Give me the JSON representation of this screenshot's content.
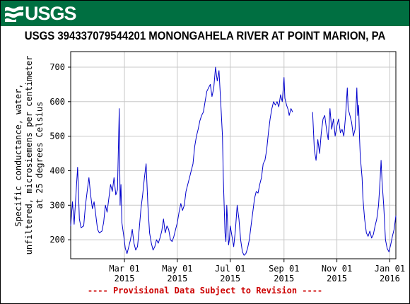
{
  "header": {
    "logo_text": "USGS",
    "banner_color": "#006f41"
  },
  "chart_data": {
    "type": "line",
    "title": "USGS 394337079544201 MONONGAHELA RIVER AT POINT MARION, PA",
    "ylabel_lines": [
      "Specific conductance, water,",
      "unfiltered, microsiemens per centimeter",
      "at 25 degrees Celsius"
    ],
    "xlabel": "",
    "xlim": [
      "2014-12-29",
      "2016-01-08"
    ],
    "ylim": [
      145,
      745
    ],
    "yticks": [
      200,
      300,
      400,
      500,
      600,
      700
    ],
    "xticks": [
      {
        "date": "2015-03-01",
        "month": "Mar 01",
        "year": "2015"
      },
      {
        "date": "2015-05-01",
        "month": "May 01",
        "year": "2015"
      },
      {
        "date": "2015-07-01",
        "month": "Jul 01",
        "year": "2015"
      },
      {
        "date": "2015-09-01",
        "month": "Sep 01",
        "year": "2015"
      },
      {
        "date": "2015-11-01",
        "month": "Nov 01",
        "year": "2015"
      },
      {
        "date": "2016-01-01",
        "month": "Jan 01",
        "year": "2016"
      }
    ],
    "grid": true,
    "line_color": "#0000cc",
    "series": [
      {
        "name": "",
        "segments": [
          [
            [
              "2014-12-29",
              240
            ],
            [
              "2014-12-31",
              310
            ],
            [
              "2015-01-02",
              245
            ],
            [
              "2015-01-04",
              330
            ],
            [
              "2015-01-06",
              410
            ],
            [
              "2015-01-08",
              260
            ],
            [
              "2015-01-10",
              235
            ],
            [
              "2015-01-13",
              240
            ],
            [
              "2015-01-15",
              300
            ],
            [
              "2015-01-17",
              340
            ],
            [
              "2015-01-19",
              380
            ],
            [
              "2015-01-21",
              330
            ],
            [
              "2015-01-23",
              290
            ],
            [
              "2015-01-25",
              310
            ],
            [
              "2015-01-27",
              270
            ],
            [
              "2015-01-29",
              230
            ],
            [
              "2015-01-31",
              220
            ],
            [
              "2015-02-03",
              225
            ],
            [
              "2015-02-05",
              250
            ],
            [
              "2015-02-07",
              300
            ],
            [
              "2015-02-09",
              280
            ],
            [
              "2015-02-11",
              320
            ],
            [
              "2015-02-13",
              360
            ],
            [
              "2015-02-15",
              340
            ],
            [
              "2015-02-17",
              380
            ],
            [
              "2015-02-19",
              330
            ],
            [
              "2015-02-21",
              345
            ],
            [
              "2015-02-23",
              580
            ],
            [
              "2015-02-24",
              300
            ],
            [
              "2015-02-25",
              360
            ],
            [
              "2015-02-26",
              250
            ],
            [
              "2015-02-28",
              215
            ],
            [
              "2015-03-02",
              175
            ],
            [
              "2015-03-04",
              160
            ],
            [
              "2015-03-06",
              180
            ],
            [
              "2015-03-08",
              200
            ],
            [
              "2015-03-10",
              230
            ],
            [
              "2015-03-12",
              190
            ],
            [
              "2015-03-14",
              170
            ],
            [
              "2015-03-16",
              180
            ],
            [
              "2015-03-18",
              230
            ],
            [
              "2015-03-20",
              290
            ],
            [
              "2015-03-22",
              330
            ],
            [
              "2015-03-24",
              380
            ],
            [
              "2015-03-26",
              420
            ],
            [
              "2015-03-28",
              300
            ],
            [
              "2015-03-30",
              220
            ],
            [
              "2015-04-01",
              190
            ],
            [
              "2015-04-03",
              170
            ],
            [
              "2015-04-05",
              180
            ],
            [
              "2015-04-07",
              200
            ],
            [
              "2015-04-09",
              190
            ],
            [
              "2015-04-11",
              205
            ],
            [
              "2015-04-13",
              225
            ],
            [
              "2015-04-15",
              260
            ],
            [
              "2015-04-17",
              220
            ],
            [
              "2015-04-19",
              240
            ],
            [
              "2015-04-21",
              230
            ],
            [
              "2015-04-23",
              200
            ],
            [
              "2015-04-25",
              195
            ],
            [
              "2015-04-27",
              210
            ],
            [
              "2015-04-29",
              230
            ],
            [
              "2015-05-01",
              250
            ],
            [
              "2015-05-03",
              280
            ],
            [
              "2015-05-05",
              305
            ],
            [
              "2015-05-07",
              285
            ],
            [
              "2015-05-09",
              300
            ],
            [
              "2015-05-11",
              340
            ],
            [
              "2015-05-13",
              360
            ],
            [
              "2015-05-15",
              380
            ],
            [
              "2015-05-17",
              400
            ],
            [
              "2015-05-19",
              420
            ],
            [
              "2015-05-21",
              470
            ],
            [
              "2015-05-23",
              500
            ],
            [
              "2015-05-25",
              520
            ],
            [
              "2015-05-27",
              545
            ],
            [
              "2015-05-29",
              560
            ],
            [
              "2015-05-31",
              570
            ],
            [
              "2015-06-02",
              600
            ],
            [
              "2015-06-04",
              630
            ],
            [
              "2015-06-06",
              640
            ],
            [
              "2015-06-08",
              650
            ],
            [
              "2015-06-10",
              615
            ],
            [
              "2015-06-12",
              640
            ],
            [
              "2015-06-14",
              700
            ],
            [
              "2015-06-16",
              660
            ],
            [
              "2015-06-18",
              690
            ],
            [
              "2015-06-20",
              600
            ],
            [
              "2015-06-22",
              500
            ],
            [
              "2015-06-23",
              380
            ],
            [
              "2015-06-24",
              300
            ],
            [
              "2015-06-25",
              220
            ],
            [
              "2015-06-26",
              195
            ],
            [
              "2015-06-27",
              300
            ],
            [
              "2015-06-28",
              250
            ],
            [
              "2015-06-29",
              185
            ],
            [
              "2015-06-30",
              200
            ],
            [
              "2015-07-01",
              240
            ],
            [
              "2015-07-03",
              210
            ],
            [
              "2015-07-05",
              180
            ],
            [
              "2015-07-07",
              230
            ],
            [
              "2015-07-09",
              300
            ],
            [
              "2015-07-11",
              260
            ],
            [
              "2015-07-13",
              200
            ],
            [
              "2015-07-15",
              165
            ],
            [
              "2015-07-17",
              155
            ],
            [
              "2015-07-19",
              160
            ],
            [
              "2015-07-21",
              175
            ],
            [
              "2015-07-23",
              200
            ],
            [
              "2015-07-25",
              240
            ],
            [
              "2015-07-27",
              280
            ],
            [
              "2015-07-29",
              320
            ],
            [
              "2015-07-31",
              340
            ],
            [
              "2015-08-02",
              335
            ],
            [
              "2015-08-04",
              360
            ],
            [
              "2015-08-06",
              380
            ],
            [
              "2015-08-08",
              420
            ],
            [
              "2015-08-10",
              430
            ],
            [
              "2015-08-12",
              460
            ],
            [
              "2015-08-14",
              510
            ],
            [
              "2015-08-16",
              550
            ],
            [
              "2015-08-18",
              580
            ],
            [
              "2015-08-20",
              600
            ],
            [
              "2015-08-22",
              590
            ],
            [
              "2015-08-24",
              600
            ],
            [
              "2015-08-26",
              585
            ],
            [
              "2015-08-28",
              620
            ],
            [
              "2015-08-30",
              600
            ],
            [
              "2015-09-01",
              670
            ],
            [
              "2015-09-02",
              610
            ],
            [
              "2015-09-04",
              590
            ],
            [
              "2015-09-06",
              575
            ],
            [
              "2015-09-07",
              560
            ],
            [
              "2015-09-09",
              580
            ],
            [
              "2015-09-11",
              570
            ]
          ],
          [
            [
              "2015-10-04",
              570
            ],
            [
              "2015-10-06",
              460
            ],
            [
              "2015-10-08",
              430
            ],
            [
              "2015-10-10",
              490
            ],
            [
              "2015-10-12",
              450
            ],
            [
              "2015-10-14",
              510
            ],
            [
              "2015-10-16",
              550
            ],
            [
              "2015-10-18",
              560
            ],
            [
              "2015-10-20",
              520
            ],
            [
              "2015-10-22",
              490
            ],
            [
              "2015-10-24",
              580
            ],
            [
              "2015-10-26",
              520
            ],
            [
              "2015-10-28",
              550
            ],
            [
              "2015-10-30",
              500
            ],
            [
              "2015-11-01",
              530
            ],
            [
              "2015-11-03",
              550
            ],
            [
              "2015-11-05",
              510
            ],
            [
              "2015-11-07",
              520
            ],
            [
              "2015-11-09",
              500
            ],
            [
              "2015-11-11",
              560
            ],
            [
              "2015-11-13",
              640
            ],
            [
              "2015-11-14",
              580
            ],
            [
              "2015-11-16",
              560
            ],
            [
              "2015-11-18",
              540
            ],
            [
              "2015-11-20",
              500
            ],
            [
              "2015-11-22",
              520
            ],
            [
              "2015-11-24",
              640
            ],
            [
              "2015-11-25",
              560
            ],
            [
              "2015-11-26",
              590
            ],
            [
              "2015-11-27",
              500
            ],
            [
              "2015-11-28",
              440
            ],
            [
              "2015-11-30",
              380
            ],
            [
              "2015-12-01",
              320
            ],
            [
              "2015-12-03",
              260
            ],
            [
              "2015-12-05",
              220
            ],
            [
              "2015-12-07",
              210
            ],
            [
              "2015-12-09",
              225
            ],
            [
              "2015-12-11",
              205
            ],
            [
              "2015-12-13",
              215
            ],
            [
              "2015-12-15",
              240
            ],
            [
              "2015-12-17",
              260
            ],
            [
              "2015-12-19",
              300
            ],
            [
              "2015-12-21",
              380
            ],
            [
              "2015-12-22",
              430
            ],
            [
              "2015-12-23",
              370
            ],
            [
              "2015-12-25",
              300
            ],
            [
              "2015-12-27",
              200
            ],
            [
              "2015-12-29",
              175
            ],
            [
              "2015-12-31",
              165
            ],
            [
              "2016-01-02",
              185
            ],
            [
              "2016-01-04",
              210
            ],
            [
              "2016-01-06",
              230
            ],
            [
              "2016-01-07",
              250
            ],
            [
              "2016-01-08",
              270
            ]
          ]
        ]
      }
    ]
  },
  "footer": {
    "text": "---- Provisional Data Subject to Revision ----"
  }
}
